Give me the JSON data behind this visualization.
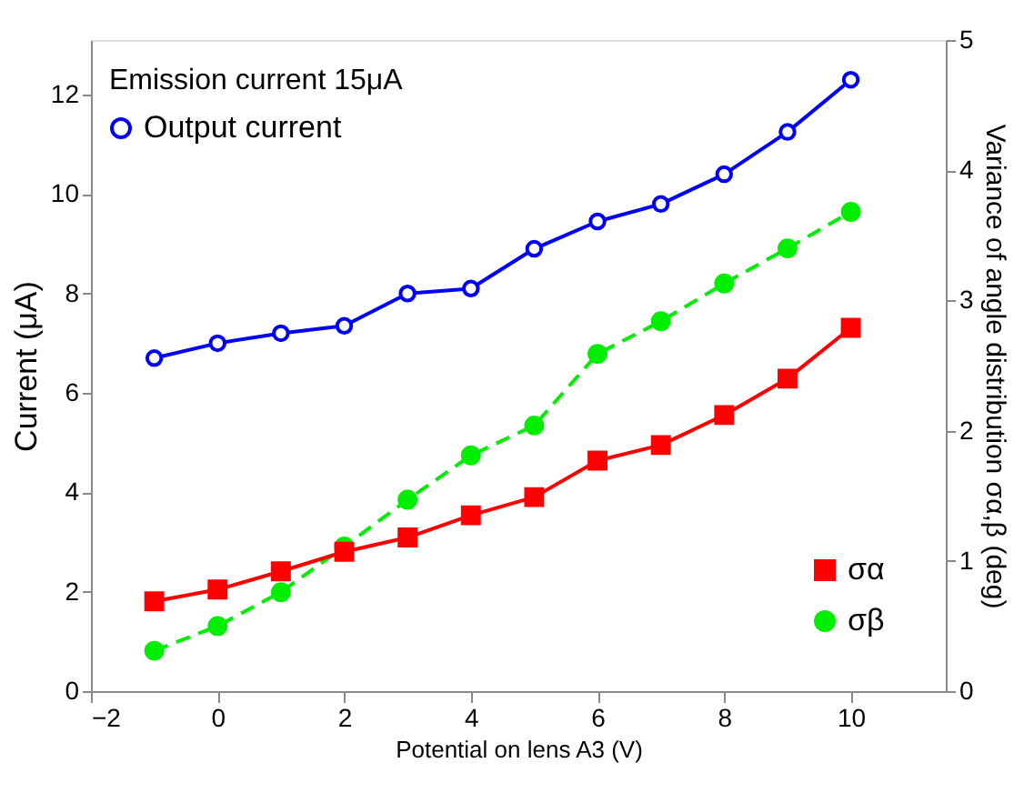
{
  "chart_data": {
    "type": "line",
    "xlabel": "Potential on lens A3 (V)",
    "ylabel": "Current (μA)",
    "y2label": "Variance of angle distribution σα,β (deg)",
    "x": [
      -1,
      0,
      1,
      2,
      3,
      4,
      5,
      6,
      7,
      8,
      9,
      10
    ],
    "xlim": [
      -2,
      11.5
    ],
    "xticks": [
      -2,
      0,
      2,
      4,
      6,
      8,
      10
    ],
    "ylim": [
      0,
      13.1
    ],
    "yticks": [
      0,
      2,
      4,
      6,
      8,
      10,
      12
    ],
    "y2lim": [
      0,
      5
    ],
    "y2ticks": [
      0,
      1,
      2,
      3,
      4,
      5
    ],
    "annotations": [
      "Emission current 15μA"
    ],
    "legend": "bottom right",
    "grid": false,
    "series": [
      {
        "name": "Output current",
        "color": "#0000ff",
        "marker": "circle",
        "line_style": "solid",
        "values": [
          6.7,
          7.0,
          7.2,
          7.35,
          8.0,
          8.1,
          8.9,
          9.45,
          9.8,
          10.4,
          11.25,
          12.3
        ]
      },
      {
        "name": "σα",
        "color": "#ff0000",
        "marker": "square",
        "line_style": "solid",
        "axis": "y2",
        "values": [
          0.69,
          0.78,
          0.92,
          1.07,
          1.18,
          1.35,
          1.49,
          1.77,
          1.89,
          2.12,
          2.4,
          2.79
        ]
      },
      {
        "name": "σβ",
        "color": "#00ee00",
        "marker": "circle",
        "line_style": "dashed",
        "axis": "y2",
        "values": [
          0.31,
          0.5,
          0.76,
          1.11,
          1.47,
          1.81,
          2.04,
          2.59,
          2.84,
          3.13,
          3.4,
          3.68
        ]
      }
    ]
  }
}
